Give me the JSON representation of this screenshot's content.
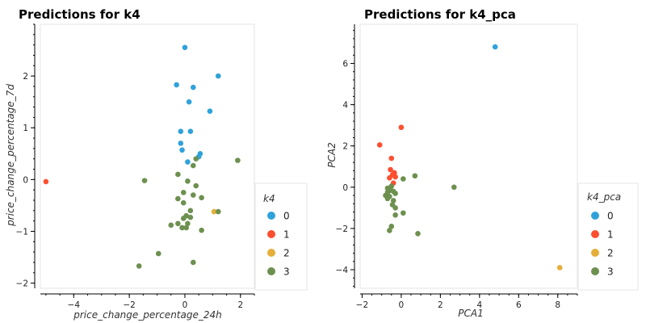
{
  "chart_data": [
    {
      "type": "scatter",
      "title": "Predictions for k4",
      "xlabel": "price_change_percentage_24h",
      "ylabel": "price_change_percentage_7d",
      "xlim": [
        -5.2,
        2.5
      ],
      "ylim": [
        -2.1,
        3.0
      ],
      "xticks": [
        -4,
        -2,
        0,
        2
      ],
      "yticks": [
        -2,
        -1,
        0,
        1,
        2
      ],
      "legend_title": "k4",
      "series": [
        {
          "name": "0",
          "color": "#30a2da",
          "points": [
            [
              0.0,
              2.55
            ],
            [
              1.2,
              2.0
            ],
            [
              -0.3,
              1.83
            ],
            [
              0.3,
              1.78
            ],
            [
              0.15,
              1.5
            ],
            [
              0.9,
              1.32
            ],
            [
              -0.15,
              0.93
            ],
            [
              0.2,
              0.93
            ],
            [
              -0.15,
              0.7
            ],
            [
              -0.1,
              0.57
            ],
            [
              0.55,
              0.5
            ],
            [
              0.5,
              0.44
            ],
            [
              0.1,
              0.34
            ]
          ]
        },
        {
          "name": "1",
          "color": "#fc4f30",
          "points": [
            [
              -5.0,
              -0.04
            ]
          ]
        },
        {
          "name": "2",
          "color": "#e5ae38",
          "points": [
            [
              1.05,
              -0.62
            ]
          ]
        },
        {
          "name": "3",
          "color": "#6d904f",
          "points": [
            [
              -1.45,
              -0.02
            ],
            [
              1.9,
              0.37
            ],
            [
              0.4,
              0.4
            ],
            [
              0.3,
              0.27
            ],
            [
              -0.25,
              0.1
            ],
            [
              0.1,
              -0.03
            ],
            [
              0.4,
              -0.12
            ],
            [
              -0.05,
              -0.25
            ],
            [
              0.3,
              -0.3
            ],
            [
              -0.25,
              -0.37
            ],
            [
              0.6,
              -0.35
            ],
            [
              -0.05,
              -0.45
            ],
            [
              0.2,
              -0.6
            ],
            [
              1.2,
              -0.62
            ],
            [
              0.05,
              -0.7
            ],
            [
              -0.05,
              -0.75
            ],
            [
              0.2,
              -0.73
            ],
            [
              0.1,
              -0.85
            ],
            [
              -0.5,
              -0.88
            ],
            [
              -0.25,
              -0.85
            ],
            [
              0.05,
              -0.93
            ],
            [
              -0.1,
              -0.93
            ],
            [
              0.6,
              -0.98
            ],
            [
              -0.95,
              -1.43
            ],
            [
              0.3,
              -1.6
            ],
            [
              -1.65,
              -1.67
            ]
          ]
        }
      ]
    },
    {
      "type": "scatter",
      "title": "Predictions for k4_pca",
      "xlabel": "PCA1",
      "ylabel": "PCA2",
      "xlim": [
        -2.1,
        9.0
      ],
      "ylim": [
        -4.9,
        7.9
      ],
      "xticks": [
        -2,
        0,
        2,
        4,
        6,
        8
      ],
      "yticks": [
        -4,
        -2,
        0,
        2,
        4,
        6
      ],
      "legend_title": "k4_pca",
      "series": [
        {
          "name": "0",
          "color": "#30a2da",
          "points": [
            [
              4.8,
              6.8
            ]
          ]
        },
        {
          "name": "1",
          "color": "#fc4f30",
          "points": [
            [
              -1.1,
              2.05
            ],
            [
              0.0,
              2.9
            ],
            [
              -0.5,
              1.4
            ],
            [
              -0.55,
              0.85
            ],
            [
              -0.35,
              0.7
            ],
            [
              -0.45,
              0.6
            ],
            [
              -0.6,
              0.45
            ],
            [
              -0.3,
              0.5
            ],
            [
              -0.4,
              0.2
            ]
          ]
        },
        {
          "name": "2",
          "color": "#e5ae38",
          "points": [
            [
              8.1,
              -3.9
            ]
          ]
        },
        {
          "name": "3",
          "color": "#6d904f",
          "points": [
            [
              2.7,
              0.0
            ],
            [
              0.7,
              0.55
            ],
            [
              0.1,
              0.4
            ],
            [
              -0.5,
              0.05
            ],
            [
              -0.7,
              -0.05
            ],
            [
              -0.55,
              -0.15
            ],
            [
              -0.4,
              -0.2
            ],
            [
              -0.7,
              -0.25
            ],
            [
              -0.3,
              -0.3
            ],
            [
              -0.8,
              -0.4
            ],
            [
              -0.6,
              -0.45
            ],
            [
              -0.7,
              -0.55
            ],
            [
              -0.4,
              -0.65
            ],
            [
              -0.45,
              -0.85
            ],
            [
              -0.3,
              -1.0
            ],
            [
              0.1,
              -1.25
            ],
            [
              -0.3,
              -1.35
            ],
            [
              -0.5,
              -1.9
            ],
            [
              -0.6,
              -2.1
            ],
            [
              0.85,
              -2.25
            ]
          ]
        }
      ]
    }
  ]
}
